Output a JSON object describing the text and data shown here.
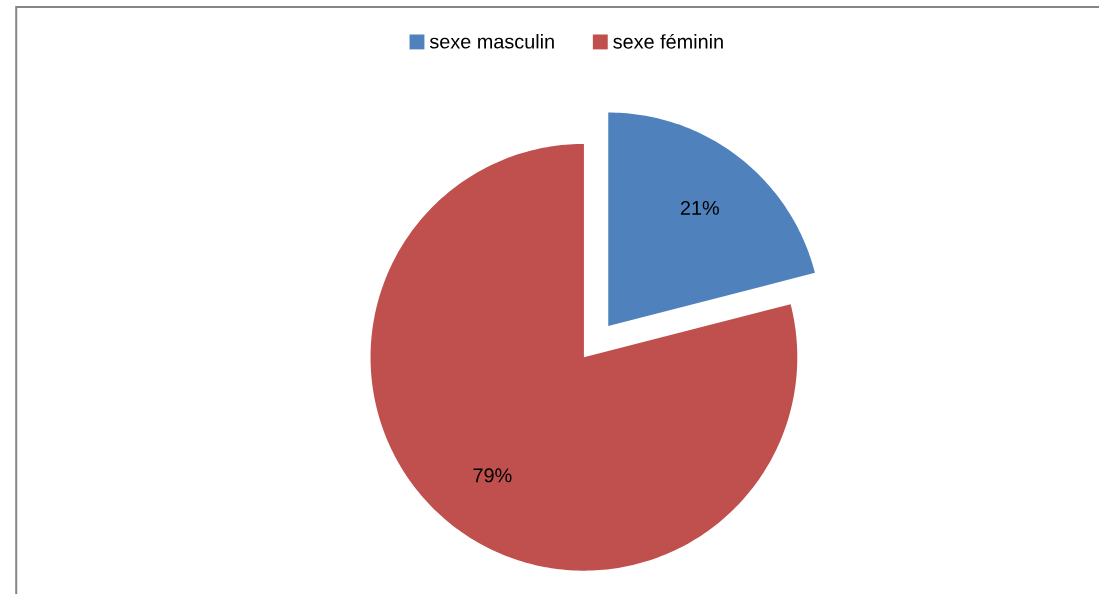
{
  "chart_data": {
    "type": "pie",
    "categories": [
      "sexe masculin",
      "sexe féminin"
    ],
    "values": [
      21,
      79
    ],
    "colors": [
      "#4f81bd",
      "#c0504d"
    ],
    "value_labels": [
      "21%",
      "79%"
    ],
    "legend": "top"
  }
}
